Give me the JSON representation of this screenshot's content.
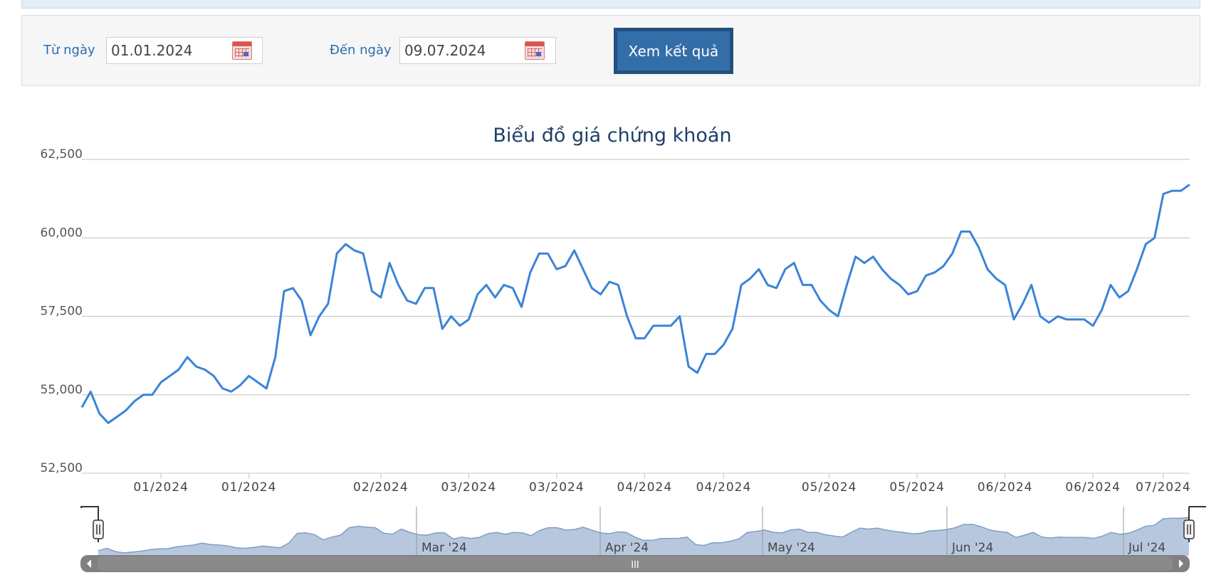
{
  "filter": {
    "from_label": "Từ ngày",
    "from_value": "01.01.2024",
    "to_label": "Đến ngày",
    "to_value": "09.07.2024",
    "submit_label": "Xem kết quả",
    "calendar_icon": "calendar-icon"
  },
  "colors": {
    "line": "#3a84d8",
    "grid": "#cccccc",
    "navigator_fill": "#b7c8de",
    "navigator_line": "#7f9ec6",
    "scrollbar": "#808080",
    "button": "#336ea8"
  },
  "chart_data": {
    "type": "line",
    "title": "Biểu đồ giá chứng khoán",
    "xlabel": "",
    "ylabel": "",
    "ylim": [
      52500,
      62500
    ],
    "y_ticks": [
      52500,
      55000,
      57500,
      60000,
      62500
    ],
    "y_tick_labels": [
      "52,500",
      "55,000",
      "57,500",
      "60,000",
      "62,500"
    ],
    "grid": true,
    "legend": "none",
    "x_tick_labels": [
      "01/2024",
      "01/2024",
      "02/2024",
      "03/2024",
      "03/2024",
      "04/2024",
      "04/2024",
      "05/2024",
      "05/2024",
      "06/2024",
      "06/2024",
      "07/2024"
    ],
    "series": [
      {
        "values": [
          54600,
          55100,
          54400,
          54100,
          54300,
          54500,
          54800,
          55000,
          55000,
          55400,
          55600,
          55800,
          56200,
          55900,
          55800,
          55600,
          55200,
          55100,
          55300,
          55600,
          55400,
          55200,
          56200,
          58300,
          58400,
          58000,
          56900,
          57500,
          57900,
          59500,
          59800,
          59600,
          59500,
          58300,
          58100,
          59200,
          58500,
          58000,
          57900,
          58400,
          58400,
          57100,
          57500,
          57200,
          57400,
          58200,
          58500,
          58100,
          58500,
          58400,
          57800,
          58900,
          59500,
          59500,
          59000,
          59100,
          59600,
          59000,
          58400,
          58200,
          58600,
          58500,
          57500,
          56800,
          56800,
          57200,
          57200,
          57200,
          57500,
          55900,
          55700,
          56300,
          56300,
          56600,
          57100,
          58500,
          58700,
          59000,
          58500,
          58400,
          59000,
          59200,
          58500,
          58500,
          58000,
          57700,
          57500,
          58500,
          59400,
          59200,
          59400,
          59000,
          58700,
          58500,
          58200,
          58300,
          58800,
          58900,
          59100,
          59500,
          60200,
          60200,
          59700,
          59000,
          58700,
          58500,
          57400,
          57900,
          58500,
          57500,
          57300,
          57500,
          57400,
          57400,
          57400,
          57200,
          57700,
          58500,
          58100,
          58300,
          59000,
          59800,
          60000,
          61400,
          61500,
          61500,
          61700
        ]
      }
    ],
    "navigator": {
      "labels": [
        "Mar '24",
        "Apr '24",
        "May '24",
        "Jun '24",
        "Jul '24"
      ],
      "scrollbar_grip": "III",
      "left_arrow_icon": "arrow-left-icon",
      "right_arrow_icon": "arrow-right-icon"
    }
  }
}
